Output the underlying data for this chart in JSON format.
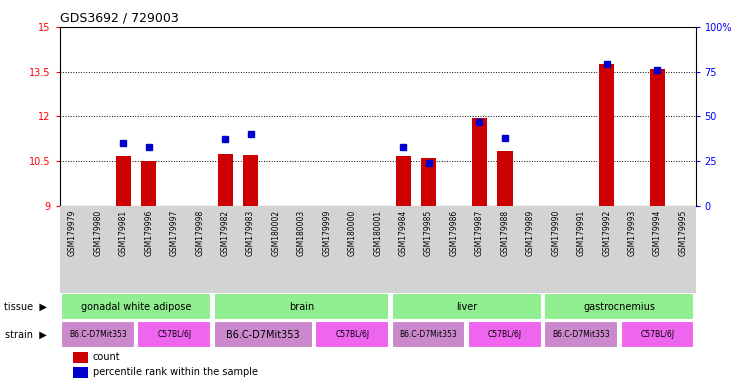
{
  "title": "GDS3692 / 729003",
  "samples": [
    "GSM179979",
    "GSM179980",
    "GSM179981",
    "GSM179996",
    "GSM179997",
    "GSM179998",
    "GSM179982",
    "GSM179983",
    "GSM180002",
    "GSM180003",
    "GSM179999",
    "GSM180000",
    "GSM180001",
    "GSM179984",
    "GSM179985",
    "GSM179986",
    "GSM179987",
    "GSM179988",
    "GSM179989",
    "GSM179990",
    "GSM179991",
    "GSM179992",
    "GSM179993",
    "GSM179994",
    "GSM179995"
  ],
  "count_values": [
    9,
    9,
    10.65,
    10.5,
    9,
    9,
    10.72,
    10.68,
    9,
    9,
    9,
    9,
    9,
    10.65,
    10.6,
    9,
    11.95,
    10.82,
    9,
    9,
    9,
    13.75,
    9,
    13.6,
    9
  ],
  "percentile_values": [
    null,
    null,
    35,
    33,
    null,
    null,
    37,
    40,
    null,
    null,
    null,
    null,
    null,
    33,
    24,
    null,
    47,
    38,
    null,
    null,
    null,
    79,
    null,
    76,
    null
  ],
  "tissue_groups": [
    {
      "label": "gonadal white adipose",
      "start": 0,
      "end": 6,
      "color": "#90EE90"
    },
    {
      "label": "brain",
      "start": 6,
      "end": 13,
      "color": "#90EE90"
    },
    {
      "label": "liver",
      "start": 13,
      "end": 19,
      "color": "#90EE90"
    },
    {
      "label": "gastrocnemius",
      "start": 19,
      "end": 25,
      "color": "#90EE90"
    }
  ],
  "strain_groups": [
    {
      "label": "B6.C-D7Mit353",
      "start": 0,
      "end": 3,
      "color": "#CC88CC"
    },
    {
      "label": "C57BL/6J",
      "start": 3,
      "end": 6,
      "color": "#EE66EE"
    },
    {
      "label": "B6.C-D7Mit353",
      "start": 6,
      "end": 10,
      "color": "#CC88CC"
    },
    {
      "label": "C57BL/6J",
      "start": 10,
      "end": 13,
      "color": "#EE66EE"
    },
    {
      "label": "B6.C-D7Mit353",
      "start": 13,
      "end": 16,
      "color": "#CC88CC"
    },
    {
      "label": "C57BL/6J",
      "start": 16,
      "end": 19,
      "color": "#EE66EE"
    },
    {
      "label": "B6.C-D7Mit353",
      "start": 19,
      "end": 22,
      "color": "#CC88CC"
    },
    {
      "label": "C57BL/6J",
      "start": 22,
      "end": 25,
      "color": "#EE66EE"
    }
  ],
  "ylim_left": [
    9,
    15
  ],
  "ylim_right": [
    0,
    100
  ],
  "yticks_left": [
    9,
    10.5,
    12,
    13.5,
    15
  ],
  "yticks_right": [
    0,
    25,
    50,
    75,
    100
  ],
  "bar_color": "#CC0000",
  "dot_color": "#0000CC",
  "background_color": "#ffffff",
  "xticklabel_bg": "#D3D3D3"
}
